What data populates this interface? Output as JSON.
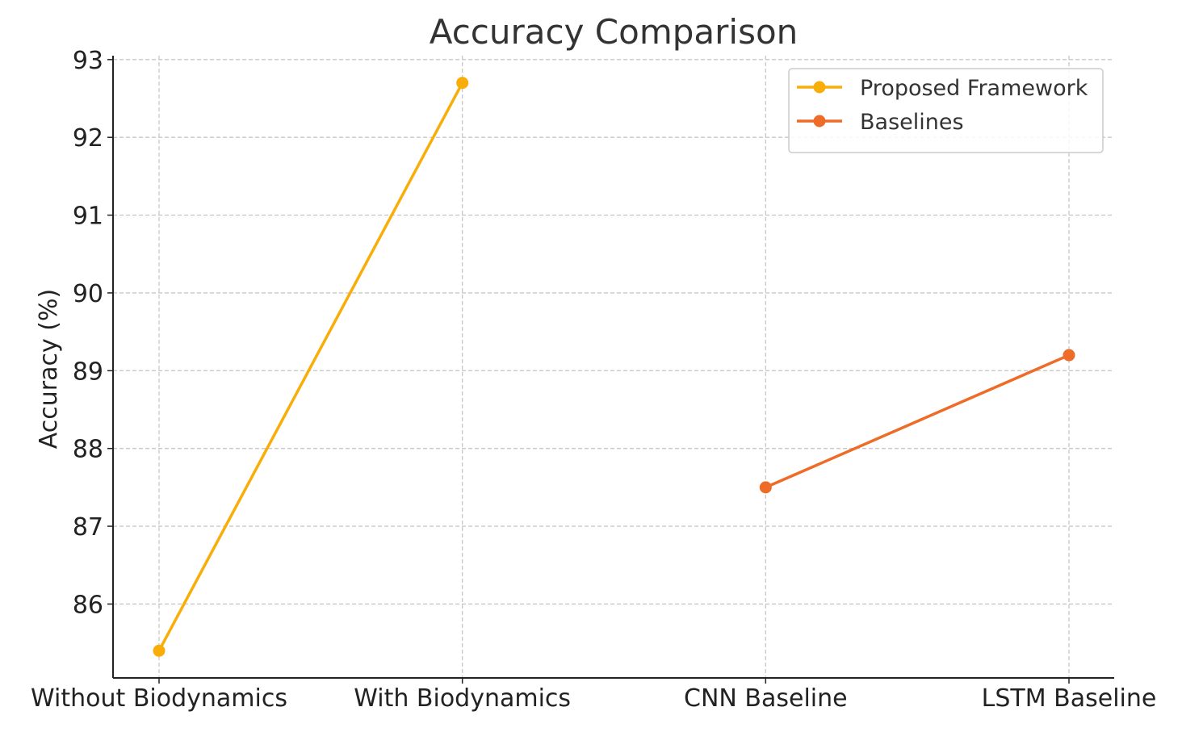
{
  "chart_data": {
    "type": "line",
    "title": "Accuracy Comparison",
    "xlabel": "",
    "ylabel": "Accuracy (%)",
    "categories": [
      "Without Biodynamics",
      "With Biodynamics",
      "CNN Baseline",
      "LSTM Baseline"
    ],
    "yticks": [
      86,
      87,
      88,
      89,
      90,
      91,
      92,
      93
    ],
    "ylim": [
      85.05,
      93.05
    ],
    "grid": true,
    "legend_position": "top-right",
    "series": [
      {
        "name": "Proposed Framework",
        "color": "#f9ad08",
        "points": [
          {
            "category": "Without Biodynamics",
            "value": 85.4
          },
          {
            "category": "With Biodynamics",
            "value": 92.7
          }
        ]
      },
      {
        "name": "Baselines",
        "color": "#ee6b28",
        "points": [
          {
            "category": "CNN Baseline",
            "value": 87.5
          },
          {
            "category": "LSTM Baseline",
            "value": 89.2
          }
        ]
      }
    ]
  }
}
